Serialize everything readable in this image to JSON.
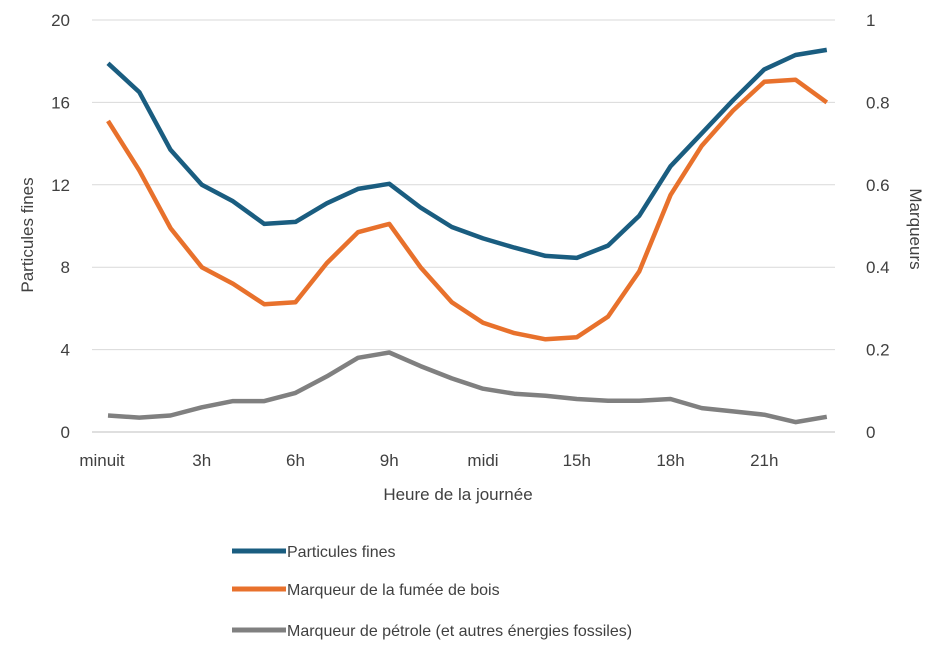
{
  "chart_data": {
    "type": "line",
    "title": "",
    "xlabel": "Heure de la journée",
    "ylabel": "Particules fines",
    "y2label": "Marqueurs",
    "ylim": [
      0,
      20
    ],
    "y2lim": [
      0,
      1
    ],
    "yticks": [
      "0",
      "4",
      "8",
      "12",
      "16",
      "20"
    ],
    "y2ticks": [
      "0",
      "0.2",
      "0.4",
      "0.6",
      "0.8",
      "1"
    ],
    "xtick_labels": [
      "minuit",
      "3h",
      "6h",
      "9h",
      "midi",
      "15h",
      "18h",
      "21h"
    ],
    "xtick_hours": [
      0,
      3,
      6,
      9,
      12,
      15,
      18,
      21
    ],
    "x": [
      0,
      1,
      2,
      3,
      4,
      5,
      6,
      7,
      8,
      9,
      10,
      11,
      12,
      13,
      14,
      15,
      16,
      17,
      18,
      19,
      20,
      21,
      22,
      23
    ],
    "grid": "horizontal",
    "legend_position": "bottom",
    "series": [
      {
        "name": "Particules fines",
        "axis": "left",
        "color": "#1a5d80",
        "values": [
          17.9,
          16.5,
          13.7,
          12.0,
          11.2,
          10.1,
          10.2,
          11.1,
          11.8,
          12.05,
          10.9,
          9.95,
          9.4,
          8.95,
          8.55,
          8.45,
          9.05,
          10.5,
          12.9,
          14.5,
          16.1,
          17.6,
          18.3,
          18.55
        ]
      },
      {
        "name": "Marqueur de la fumée de bois",
        "axis": "right",
        "color": "#e8712c",
        "values": [
          0.755,
          0.635,
          0.495,
          0.4,
          0.36,
          0.31,
          0.315,
          0.41,
          0.485,
          0.505,
          0.4,
          0.315,
          0.265,
          0.24,
          0.225,
          0.23,
          0.28,
          0.39,
          0.575,
          0.695,
          0.78,
          0.85,
          0.855,
          0.8
        ]
      },
      {
        "name": "Marqueur de pétrole (et autres énergies fossiles)",
        "axis": "right",
        "color": "#808080",
        "values": [
          0.04,
          0.035,
          0.04,
          0.06,
          0.075,
          0.075,
          0.095,
          0.135,
          0.18,
          0.193,
          0.16,
          0.13,
          0.105,
          0.093,
          0.088,
          0.08,
          0.076,
          0.076,
          0.08,
          0.058,
          0.05,
          0.042,
          0.024,
          0.037
        ]
      }
    ]
  }
}
